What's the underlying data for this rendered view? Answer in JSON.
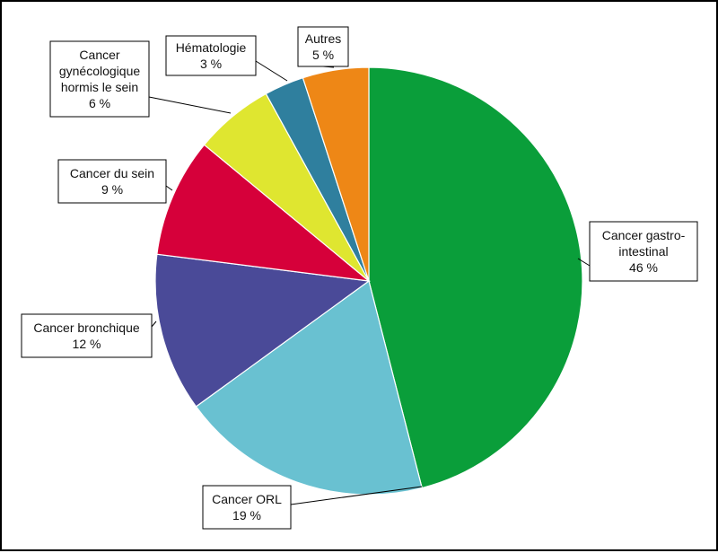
{
  "chart_data": {
    "type": "pie",
    "title": "",
    "start": "top",
    "direction": "clockwise",
    "slices": [
      {
        "label": "Cancer gastro-intestinal",
        "lines": [
          "Cancer gastro-",
          "intestinal"
        ],
        "pct": "46 %",
        "value": 46,
        "color": "#0a9e3a"
      },
      {
        "label": "Cancer ORL",
        "lines": [
          "Cancer ORL"
        ],
        "pct": "19 %",
        "value": 19,
        "color": "#69c1d1"
      },
      {
        "label": "Cancer bronchique",
        "lines": [
          "Cancer bronchique"
        ],
        "pct": "12 %",
        "value": 12,
        "color": "#4a4a98"
      },
      {
        "label": "Cancer du sein",
        "lines": [
          "Cancer du sein"
        ],
        "pct": "9 %",
        "value": 9,
        "color": "#d6003a"
      },
      {
        "label": "Cancer gynécologique hormis le sein",
        "lines": [
          "Cancer",
          "gynécologique",
          "hormis le sein"
        ],
        "pct": "6 %",
        "value": 6,
        "color": "#dfe630"
      },
      {
        "label": "Hématologie",
        "lines": [
          "Hématologie"
        ],
        "pct": "3 %",
        "value": 3,
        "color": "#2f7f9e"
      },
      {
        "label": "Autres",
        "lines": [
          "Autres"
        ],
        "pct": "5 %",
        "value": 5,
        "color": "#ee8716"
      }
    ]
  }
}
